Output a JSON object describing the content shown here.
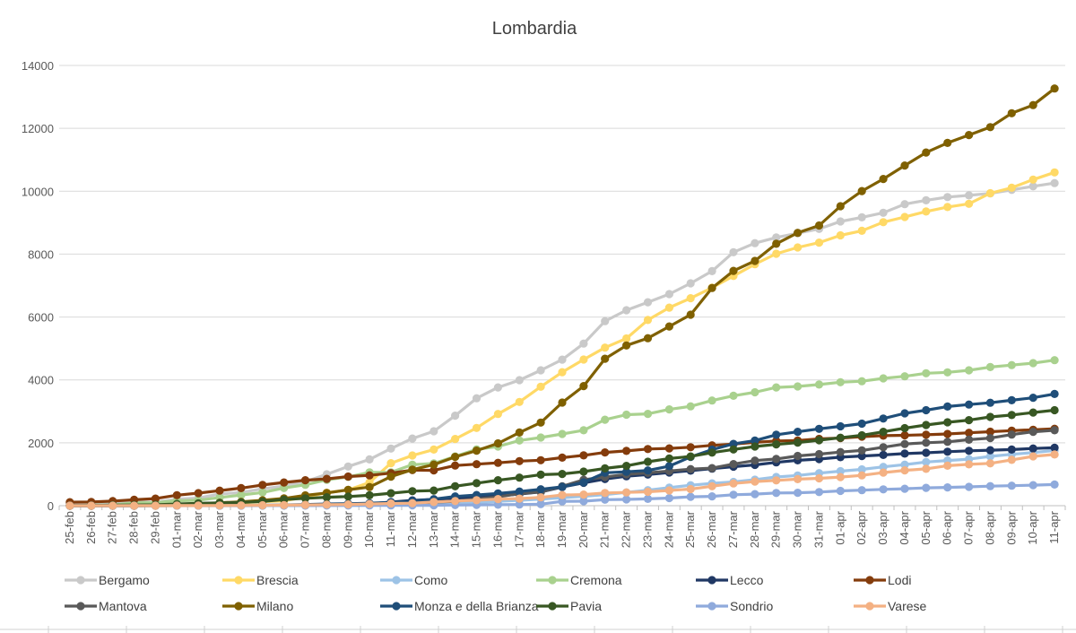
{
  "chart_data": {
    "type": "line",
    "title": "Lombardia",
    "xlabel": "",
    "ylabel": "",
    "ylim": [
      0,
      14000
    ],
    "yticks": [
      0,
      2000,
      4000,
      6000,
      8000,
      10000,
      12000,
      14000
    ],
    "grid": true,
    "legend_position": "bottom",
    "categories": [
      "25-feb",
      "26-feb",
      "27-feb",
      "28-feb",
      "29-feb",
      "01-mar",
      "02-mar",
      "03-mar",
      "04-mar",
      "05-mar",
      "06-mar",
      "07-mar",
      "08-mar",
      "09-mar",
      "10-mar",
      "11-mar",
      "12-mar",
      "13-mar",
      "14-mar",
      "15-mar",
      "16-mar",
      "17-mar",
      "18-mar",
      "19-mar",
      "20-mar",
      "21-mar",
      "22-mar",
      "23-mar",
      "24-mar",
      "25-mar",
      "26-mar",
      "27-mar",
      "28-mar",
      "29-mar",
      "30-mar",
      "31-mar",
      "01-apr",
      "02-apr",
      "03-apr",
      "04-apr",
      "05-apr",
      "06-apr",
      "07-apr",
      "08-apr",
      "09-apr",
      "10-apr",
      "11-apr"
    ],
    "series": [
      {
        "name": "Bergamo",
        "color": "#c9c9c9",
        "values": [
          20,
          20,
          72,
          103,
          110,
          209,
          243,
          372,
          423,
          537,
          623,
          761,
          997,
          1245,
          1472,
          1815,
          2136,
          2368,
          2864,
          3416,
          3760,
          3993,
          4305,
          4645,
          5154,
          5869,
          6216,
          6471,
          6728,
          7072,
          7458,
          8060,
          8349,
          8527,
          8664,
          8803,
          9039,
          9171,
          9315,
          9588,
          9712,
          9815,
          9868,
          9931,
          10043,
          10155,
          10258
        ]
      },
      {
        "name": "Brescia",
        "color": "#ffd966",
        "values": [
          0,
          0,
          0,
          0,
          3,
          10,
          20,
          37,
          90,
          127,
          155,
          273,
          413,
          501,
          739,
          1351,
          1598,
          1784,
          2122,
          2473,
          2918,
          3300,
          3784,
          4247,
          4648,
          5028,
          5317,
          5905,
          6298,
          6597,
          6931,
          7305,
          7678,
          8013,
          8213,
          8367,
          8598,
          8743,
          9016,
          9180,
          9356,
          9498,
          9599,
          9937,
          10112,
          10370,
          10597
        ]
      },
      {
        "name": "Como",
        "color": "#9dc3e6",
        "values": [
          0,
          0,
          0,
          0,
          0,
          2,
          3,
          3,
          3,
          3,
          5,
          8,
          11,
          15,
          15,
          22,
          30,
          56,
          75,
          99,
          136,
          171,
          211,
          255,
          300,
          352,
          422,
          492,
          573,
          650,
          711,
          756,
          828,
          913,
          960,
          1036,
          1098,
          1155,
          1234,
          1307,
          1388,
          1436,
          1480,
          1568,
          1634,
          1688,
          1755
        ]
      },
      {
        "name": "Cremona",
        "color": "#a9d18e",
        "values": [
          6,
          18,
          23,
          87,
          96,
          155,
          174,
          260,
          340,
          420,
          562,
          665,
          822,
          916,
          1061,
          1061,
          1302,
          1344,
          1565,
          1792,
          1881,
          2073,
          2167,
          2282,
          2399,
          2733,
          2895,
          2920,
          3061,
          3158,
          3345,
          3496,
          3606,
          3760,
          3793,
          3852,
          3927,
          3957,
          4048,
          4114,
          4211,
          4240,
          4305,
          4409,
          4471,
          4535,
          4629
        ]
      },
      {
        "name": "Lecco",
        "color": "#203864",
        "values": [
          0,
          0,
          0,
          0,
          3,
          3,
          3,
          4,
          5,
          8,
          12,
          18,
          31,
          57,
          57,
          115,
          167,
          200,
          237,
          277,
          311,
          370,
          435,
          593,
          728,
          848,
          934,
          988,
          1054,
          1116,
          1179,
          1239,
          1298,
          1376,
          1444,
          1483,
          1543,
          1579,
          1613,
          1656,
          1681,
          1717,
          1746,
          1766,
          1785,
          1819,
          1842
        ]
      },
      {
        "name": "Lodi",
        "color": "#843c0c",
        "values": [
          110,
          116,
          146,
          187,
          225,
          335,
          399,
          480,
          559,
          658,
          739,
          811,
          853,
          928,
          963,
          1035,
          1133,
          1123,
          1276,
          1320,
          1362,
          1418,
          1445,
          1527,
          1601,
          1693,
          1743,
          1801,
          1822,
          1860,
          1919,
          1960,
          2012,
          2060,
          2073,
          2125,
          2151,
          2195,
          2228,
          2239,
          2255,
          2280,
          2319,
          2351,
          2387,
          2414,
          2446
        ]
      },
      {
        "name": "Mantova",
        "color": "#595959",
        "values": [
          0,
          0,
          0,
          0,
          0,
          3,
          3,
          3,
          6,
          6,
          8,
          15,
          18,
          24,
          37,
          42,
          77,
          108,
          136,
          220,
          279,
          386,
          435,
          617,
          825,
          912,
          991,
          1045,
          1103,
          1164,
          1196,
          1322,
          1434,
          1486,
          1582,
          1640,
          1704,
          1757,
          1858,
          1961,
          2001,
          2030,
          2099,
          2150,
          2260,
          2349,
          2398
        ]
      },
      {
        "name": "Milano",
        "color": "#7f6000",
        "values": [
          0,
          0,
          7,
          12,
          19,
          29,
          49,
          94,
          124,
          170,
          231,
          328,
          406,
          506,
          592,
          925,
          1146,
          1307,
          1551,
          1750,
          1983,
          2326,
          2644,
          3278,
          3804,
          4672,
          5096,
          5326,
          5701,
          6074,
          6922,
          7469,
          7783,
          8329,
          8676,
          8911,
          9522,
          10004,
          10391,
          10819,
          11230,
          11537,
          11787,
          12039,
          12479,
          12740,
          13268
        ]
      },
      {
        "name": "Monza e della Brianza",
        "color": "#1f4e79",
        "values": [
          0,
          0,
          0,
          0,
          2,
          3,
          3,
          5,
          8,
          13,
          22,
          36,
          53,
          63,
          80,
          106,
          149,
          207,
          294,
          340,
          392,
          450,
          522,
          598,
          742,
          1046,
          1077,
          1120,
          1257,
          1552,
          1781,
          1964,
          2071,
          2254,
          2349,
          2444,
          2523,
          2608,
          2772,
          2938,
          3037,
          3154,
          3215,
          3273,
          3352,
          3433,
          3554
        ]
      },
      {
        "name": "Pavia",
        "color": "#385723",
        "values": [
          4,
          9,
          16,
          24,
          28,
          55,
          73,
          88,
          104,
          135,
          195,
          234,
          267,
          292,
          332,
          396,
          461,
          481,
          618,
          716,
          810,
          892,
          986,
          1009,
          1084,
          1186,
          1267,
          1397,
          1499,
          1566,
          1689,
          1789,
          1882,
          1951,
          2007,
          2082,
          2161,
          2237,
          2350,
          2467,
          2566,
          2651,
          2719,
          2822,
          2883,
          2963,
          3038
        ]
      },
      {
        "name": "Sondrio",
        "color": "#8faadc",
        "values": [
          0,
          0,
          0,
          0,
          0,
          1,
          1,
          1,
          1,
          2,
          2,
          3,
          5,
          5,
          8,
          8,
          10,
          12,
          21,
          26,
          31,
          38,
          49,
          138,
          143,
          192,
          199,
          216,
          243,
          282,
          297,
          347,
          368,
          404,
          412,
          433,
          471,
          493,
          520,
          538,
          567,
          581,
          600,
          623,
          636,
          652,
          672
        ]
      },
      {
        "name": "Varese",
        "color": "#f4b183",
        "values": [
          0,
          0,
          0,
          0,
          0,
          2,
          3,
          6,
          8,
          14,
          17,
          25,
          32,
          40,
          54,
          72,
          80,
          117,
          147,
          174,
          210,
          226,
          264,
          340,
          353,
          404,
          422,
          443,
          484,
          528,
          619,
          706,
          768,
          803,
          843,
          871,
          910,
          963,
          1051,
          1123,
          1172,
          1273,
          1314,
          1345,
          1457,
          1569,
          1628
        ]
      }
    ]
  }
}
